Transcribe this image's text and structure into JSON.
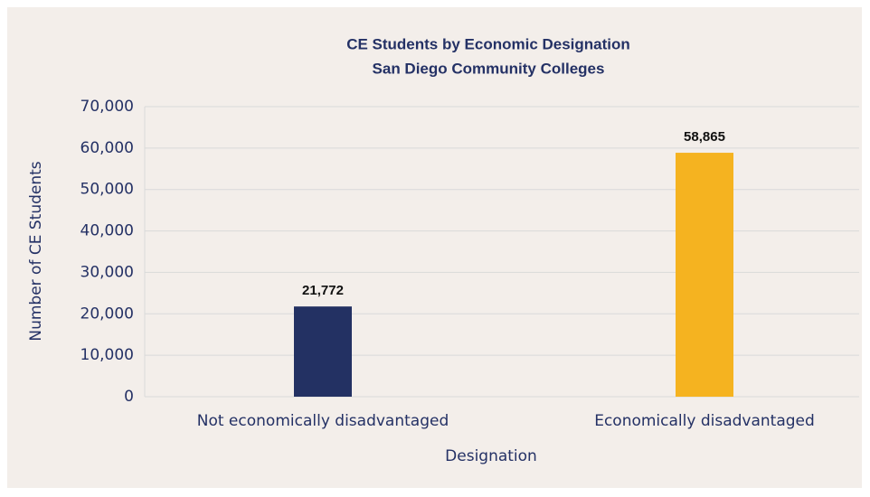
{
  "chart_data": {
    "type": "bar",
    "title": "CE Students by Economic Designation",
    "subtitle": "San Diego Community Colleges",
    "x_label": "Designation",
    "y_label": "Number of CE Students",
    "categories": [
      "Not economically disadvantaged",
      "Economically disadvantaged"
    ],
    "values": [
      21772,
      58865
    ],
    "value_labels": [
      "21,772",
      "58,865"
    ],
    "colors": [
      "#233163",
      "#f5b320"
    ],
    "ylim": [
      0,
      70000
    ],
    "yticks": [
      0,
      {
        "value": 10000,
        "label": "10,000"
      },
      {
        "value": 20000,
        "label": "20,000"
      },
      {
        "value": 30000,
        "label": "30,000"
      },
      {
        "value": 40000,
        "label": "40,000"
      },
      {
        "value": 50000,
        "label": "50,000"
      },
      {
        "value": 60000,
        "label": "60,000"
      },
      {
        "value": 70000,
        "label": "70,000"
      }
    ],
    "grid": true
  }
}
